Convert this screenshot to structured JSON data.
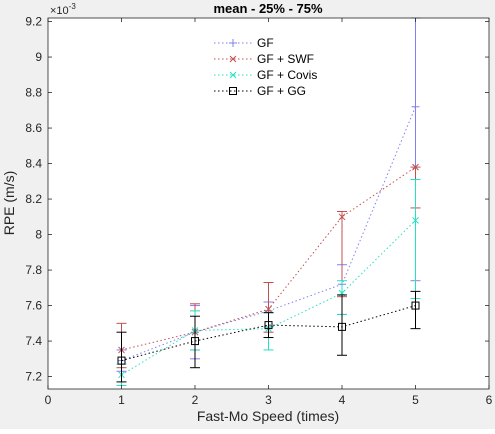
{
  "chart_data": {
    "type": "line",
    "title": "mean - 25% - 75%",
    "xlabel": "Fast-Mo Speed (times)",
    "ylabel": "RPE (m/s)",
    "y_exponent_label": "×10",
    "y_exponent_power": "-3",
    "xlim": [
      0,
      6
    ],
    "ylim": [
      7.13,
      9.22
    ],
    "y_scale_note": "values shown ×10^-3",
    "xticks": [
      0,
      1,
      2,
      3,
      4,
      5,
      6
    ],
    "yticks": [
      7.2,
      7.4,
      7.6,
      7.8,
      8.0,
      8.2,
      8.4,
      8.6,
      8.8,
      9.0,
      9.2
    ],
    "ytick_labels": [
      "7.2",
      "7.4",
      "7.6",
      "7.8",
      "8",
      "8.2",
      "8.4",
      "8.6",
      "8.8",
      "9",
      "9.2"
    ],
    "grid": false,
    "legend_position": "top-center",
    "series": [
      {
        "name": "GF",
        "color": "#8080f0",
        "marker": "plus",
        "line_style": "dotted",
        "x": [
          1,
          2,
          3,
          4,
          5
        ],
        "y": [
          7.29,
          7.45,
          7.57,
          7.72,
          8.72
        ],
        "lower": [
          7.23,
          7.3,
          7.48,
          7.55,
          7.74
        ],
        "upper": [
          7.35,
          7.6,
          7.62,
          7.83,
          9.22
        ]
      },
      {
        "name": "GF + SWF",
        "color": "#c0504d",
        "marker": "x",
        "line_style": "dotted",
        "x": [
          1,
          2,
          3,
          4,
          5
        ],
        "y": [
          7.35,
          7.45,
          7.58,
          8.1,
          8.38
        ],
        "lower": [
          7.25,
          7.35,
          7.45,
          7.65,
          8.15
        ],
        "upper": [
          7.5,
          7.61,
          7.73,
          8.13,
          8.38
        ]
      },
      {
        "name": "GF + Covis",
        "color": "#26e0c0",
        "marker": "x",
        "line_style": "dotted",
        "x": [
          1,
          2,
          3,
          4,
          5
        ],
        "y": [
          7.21,
          7.46,
          7.47,
          7.67,
          8.08
        ],
        "lower": [
          7.15,
          7.35,
          7.35,
          7.55,
          7.64
        ],
        "upper": [
          7.27,
          7.57,
          7.56,
          7.74,
          8.31
        ]
      },
      {
        "name": "GF + GG",
        "color": "#000000",
        "marker": "square",
        "line_style": "dotted",
        "x": [
          1,
          2,
          3,
          4,
          5
        ],
        "y": [
          7.29,
          7.4,
          7.49,
          7.48,
          7.6
        ],
        "lower": [
          7.17,
          7.25,
          7.42,
          7.32,
          7.47
        ],
        "upper": [
          7.45,
          7.54,
          7.56,
          7.66,
          7.68
        ]
      }
    ]
  }
}
